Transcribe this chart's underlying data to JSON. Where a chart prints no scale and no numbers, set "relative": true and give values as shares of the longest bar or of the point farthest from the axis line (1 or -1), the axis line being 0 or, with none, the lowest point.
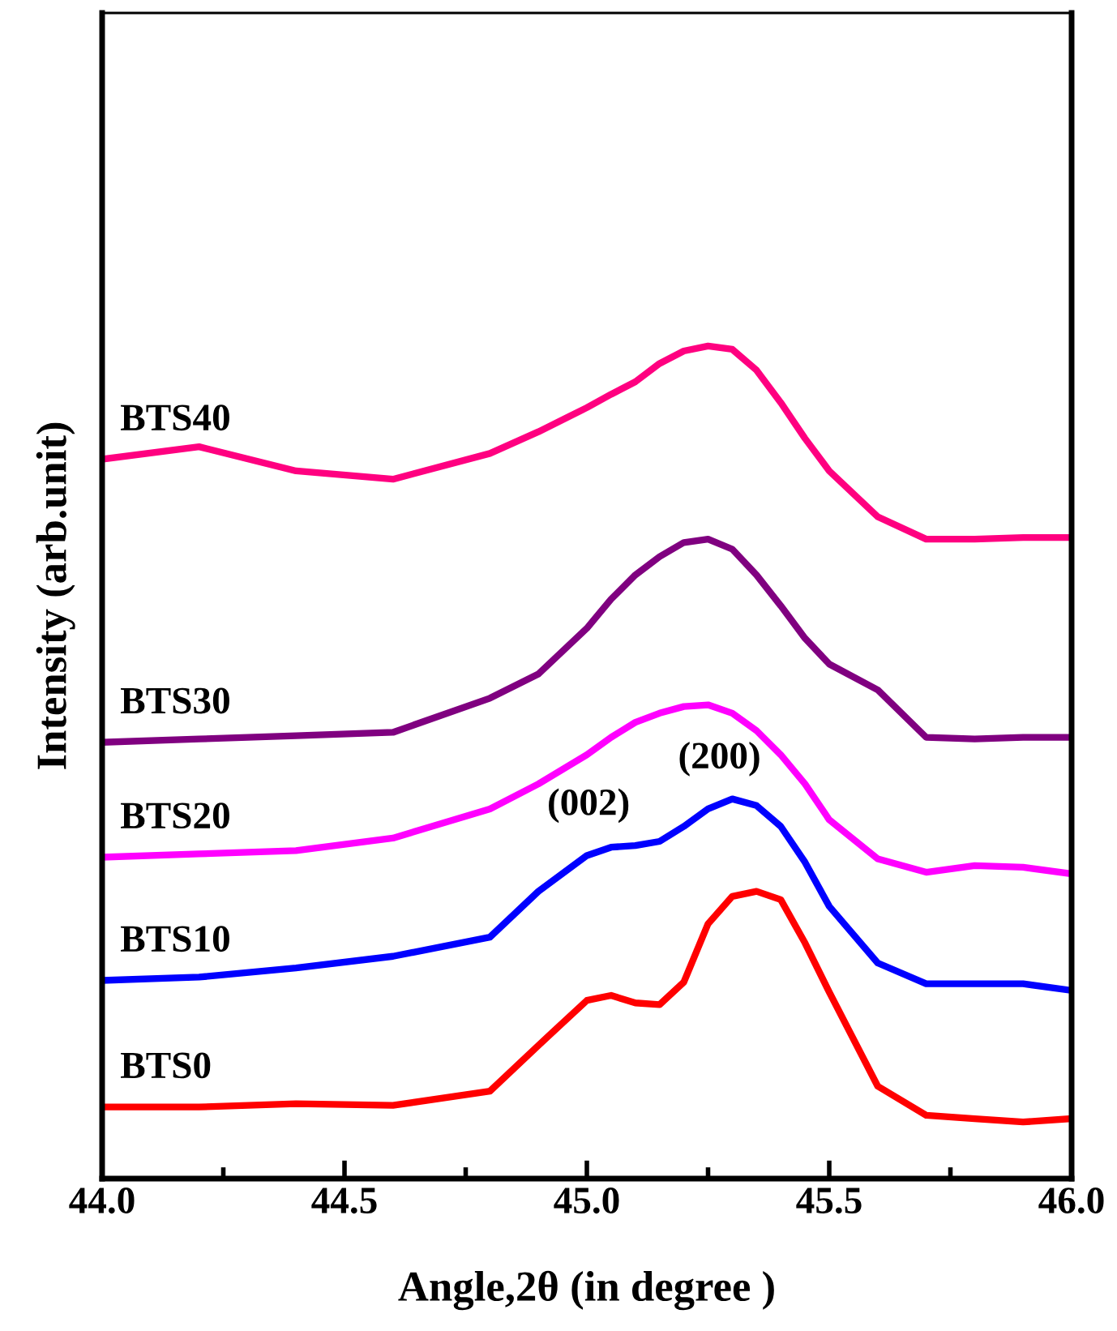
{
  "chart_data": {
    "type": "line",
    "relative": true,
    "xlabel": "Angle,2θ (in degree )",
    "ylabel": "Intensity (arb.unit)",
    "x": [
      44.0,
      44.2,
      44.4,
      44.6,
      44.8,
      44.9,
      45.0,
      45.05,
      45.1,
      45.15,
      45.2,
      45.25,
      45.3,
      45.35,
      45.4,
      45.45,
      45.5,
      45.6,
      45.7,
      45.8,
      45.9,
      46.0
    ],
    "xlim": [
      44.0,
      46.0
    ],
    "xticks": [
      {
        "value": 44.0,
        "label": "44.0"
      },
      {
        "value": 44.5,
        "label": "44.5"
      },
      {
        "value": 45.0,
        "label": "45.0"
      },
      {
        "value": 45.5,
        "label": "45.5"
      },
      {
        "value": 46.0,
        "label": "46.0"
      }
    ],
    "grid": false,
    "legend": false,
    "marker": "none",
    "line_style": "solid",
    "tick_labels": "x",
    "series": [
      {
        "name": "BTS0",
        "color": "#ff0000",
        "values": [
          0.086,
          0.086,
          0.09,
          0.088,
          0.105,
          0.16,
          0.214,
          0.22,
          0.211,
          0.209,
          0.236,
          0.306,
          0.339,
          0.345,
          0.335,
          0.283,
          0.224,
          0.111,
          0.076,
          0.072,
          0.068,
          0.072
        ]
      },
      {
        "name": "BTS10",
        "color": "#0000ff",
        "values": [
          0.238,
          0.242,
          0.253,
          0.267,
          0.29,
          0.345,
          0.388,
          0.398,
          0.4,
          0.405,
          0.423,
          0.444,
          0.456,
          0.448,
          0.423,
          0.38,
          0.327,
          0.259,
          0.234,
          0.234,
          0.234,
          0.226
        ]
      },
      {
        "name": "BTS20",
        "color": "#ff00ff",
        "values": [
          0.386,
          0.39,
          0.394,
          0.409,
          0.444,
          0.474,
          0.509,
          0.53,
          0.548,
          0.559,
          0.567,
          0.569,
          0.559,
          0.538,
          0.509,
          0.474,
          0.431,
          0.384,
          0.368,
          0.376,
          0.374,
          0.366
        ]
      },
      {
        "name": "BTS30",
        "color": "#800080",
        "values": [
          0.524,
          0.528,
          0.532,
          0.536,
          0.577,
          0.606,
          0.661,
          0.696,
          0.725,
          0.747,
          0.764,
          0.768,
          0.756,
          0.725,
          0.688,
          0.649,
          0.618,
          0.587,
          0.53,
          0.528,
          0.53,
          0.53
        ]
      },
      {
        "name": "BTS40",
        "color": "#ff0080",
        "values": [
          0.864,
          0.879,
          0.85,
          0.84,
          0.871,
          0.897,
          0.926,
          0.942,
          0.957,
          0.979,
          0.994,
          1.0,
          0.996,
          0.971,
          0.932,
          0.889,
          0.85,
          0.795,
          0.768,
          0.768,
          0.77,
          0.77
        ]
      }
    ],
    "annotations": [
      {
        "text": "(002)",
        "x": 45.05,
        "y": 0.4
      },
      {
        "text": "(200)",
        "x": 45.32,
        "y": 0.456
      }
    ]
  }
}
